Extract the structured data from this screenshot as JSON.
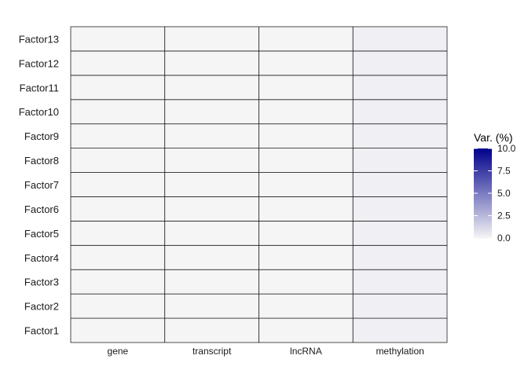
{
  "chart_data": {
    "type": "heatmap",
    "title": "",
    "xlabel": "",
    "ylabel": "",
    "x_categories": [
      "gene",
      "transcript",
      "lncRNA",
      "methylation"
    ],
    "y_categories": [
      "Factor1",
      "Factor2",
      "Factor3",
      "Factor4",
      "Factor5",
      "Factor6",
      "Factor7",
      "Factor8",
      "Factor9",
      "Factor10",
      "Factor11",
      "Factor12",
      "Factor13"
    ],
    "values": [
      [
        0.1,
        0.1,
        0.1,
        0.3
      ],
      [
        0.1,
        0.1,
        0.1,
        0.3
      ],
      [
        0.1,
        0.1,
        0.1,
        0.3
      ],
      [
        0.1,
        0.1,
        0.1,
        0.3
      ],
      [
        0.1,
        0.1,
        0.1,
        0.3
      ],
      [
        0.1,
        0.1,
        0.1,
        0.3
      ],
      [
        0.1,
        0.1,
        0.1,
        0.3
      ],
      [
        0.1,
        0.1,
        0.1,
        0.3
      ],
      [
        0.1,
        0.1,
        0.1,
        0.3
      ],
      [
        0.1,
        0.1,
        0.1,
        0.3
      ],
      [
        0.1,
        0.1,
        0.1,
        0.3
      ],
      [
        0.1,
        0.1,
        0.1,
        0.3
      ],
      [
        0.1,
        0.1,
        0.1,
        0.3
      ]
    ],
    "color_scale": {
      "low": "#f7f7f7",
      "high": "#00008b",
      "range": [
        0,
        10
      ]
    },
    "legend": {
      "title": "Var. (%)",
      "ticks": [
        "0.0",
        "2.5",
        "5.0",
        "7.5",
        "10.0"
      ],
      "tick_values": [
        0,
        2.5,
        5,
        7.5,
        10
      ],
      "position": "right"
    },
    "grid": false
  }
}
